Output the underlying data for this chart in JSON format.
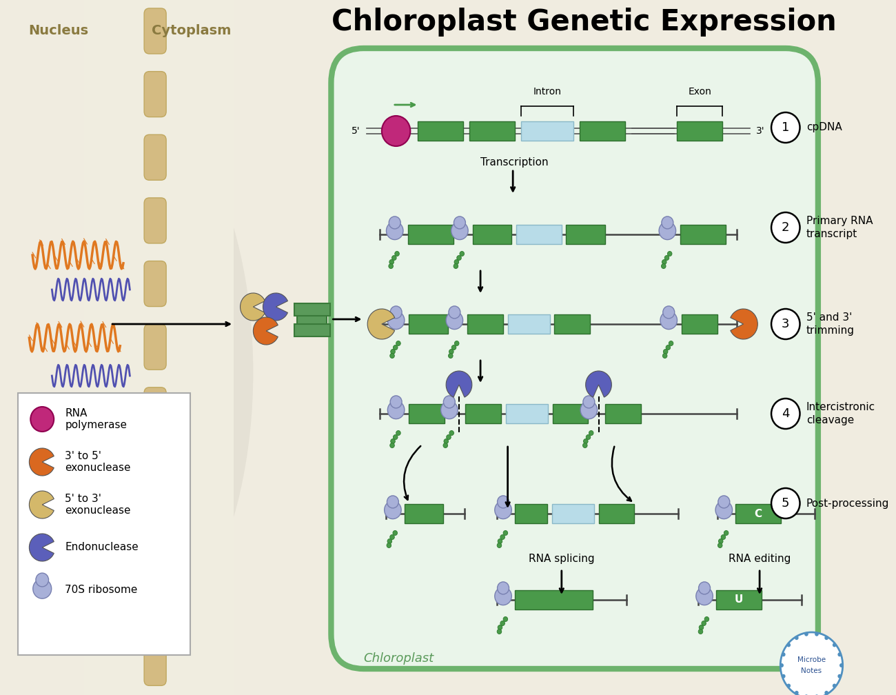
{
  "title": "Chloroplast Genetic Expression",
  "title_fontsize": 30,
  "title_fontweight": "bold",
  "bg_outer": "#f0ece0",
  "bg_nucleus": "#e8e4d8",
  "bg_cytoplasm": "#f0ede0",
  "chloroplast_bg": "#eaf5ea",
  "chloroplast_border": "#6db36d",
  "green_exon": "#4a9a4a",
  "light_blue_intron": "#b8dce8",
  "rna_pol_color": "#c0287a",
  "exonuclease_35_color": "#d96820",
  "exonuclease_53_color": "#d4b86a",
  "endonuclease_color": "#5b5fba",
  "ribosome_color": "#a8b0d8",
  "ribosome_edge": "#7880b0",
  "nucleus_label": "Nucleus",
  "cytoplasm_label": "Cytoplasm",
  "step_labels": [
    "cpDNA",
    "Primary RNA\ntranscript",
    "5' and 3'\ntrimming",
    "Intercistronic\ncleavage",
    "Post-processing"
  ],
  "step_numbers": [
    1,
    2,
    3,
    4,
    5
  ],
  "chloroplast_label": "Chloroplast",
  "transcription_label": "Transcription",
  "rna_splicing_label": "RNA splicing",
  "rna_editing_label": "RNA editing",
  "intron_label": "Intron",
  "exon_label": "Exon"
}
